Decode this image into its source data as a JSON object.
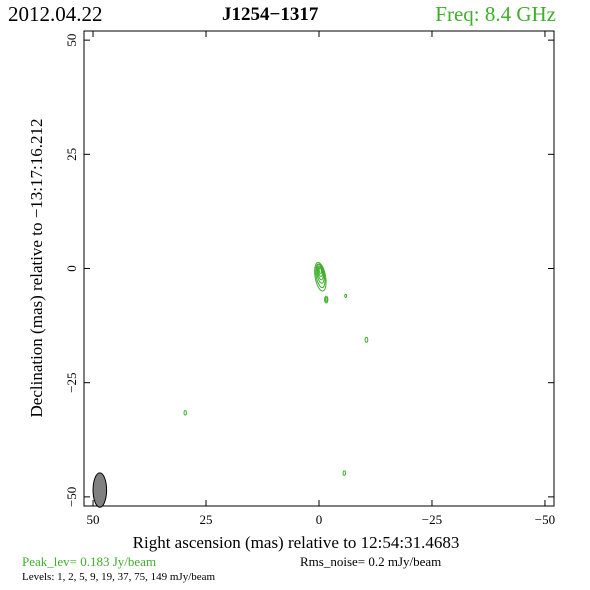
{
  "header": {
    "date": "2012.04.22",
    "source": "J1254−1317",
    "freq": "Freq: 8.4 GHz"
  },
  "colors": {
    "contour": "#3fae2a",
    "beam": "#808080",
    "freq_text": "#3fae2a"
  },
  "footer": {
    "peak": "Peak_lev=  0.183 Jy/beam",
    "rms": "Rms_noise=  0.2 mJy/beam",
    "levels": "Levels:   1,   2,   5,   9,  19,  37,  75, 149 mJy/beam"
  },
  "chart_data": {
    "type": "contour",
    "xlabel": "Right ascension (mas) relative to 12:54:31.4683",
    "ylabel": "Declination (mas) relative to −13:17:16.212",
    "xlim": [
      52,
      -52
    ],
    "ylim": [
      -52,
      52
    ],
    "xticks": [
      50,
      25,
      0,
      -25,
      -50
    ],
    "xtick_labels": [
      "50",
      "25",
      "0",
      "−25",
      "−50"
    ],
    "yticks": [
      50,
      25,
      0,
      -25,
      -50
    ],
    "ytick_labels": [
      "50",
      "25",
      "0",
      "−25",
      "−50"
    ],
    "levels_mjy": [
      1,
      2,
      5,
      9,
      19,
      37,
      75,
      149
    ],
    "core": {
      "x": -0.3,
      "y": -0.5
    },
    "components": [
      {
        "x": -1.6,
        "y": -6.8,
        "size": 0.9
      },
      {
        "x": -5.9,
        "y": -6.0,
        "size": 0.3
      },
      {
        "x": -10.5,
        "y": -15.6,
        "size": 0.6
      },
      {
        "x": 29.6,
        "y": -31.6,
        "size": 0.5
      },
      {
        "x": -5.6,
        "y": -44.8,
        "size": 0.5
      }
    ],
    "beam": {
      "x": 48.5,
      "y": -48.5,
      "major_mas": 3.8,
      "minor_mas": 1.5
    }
  }
}
